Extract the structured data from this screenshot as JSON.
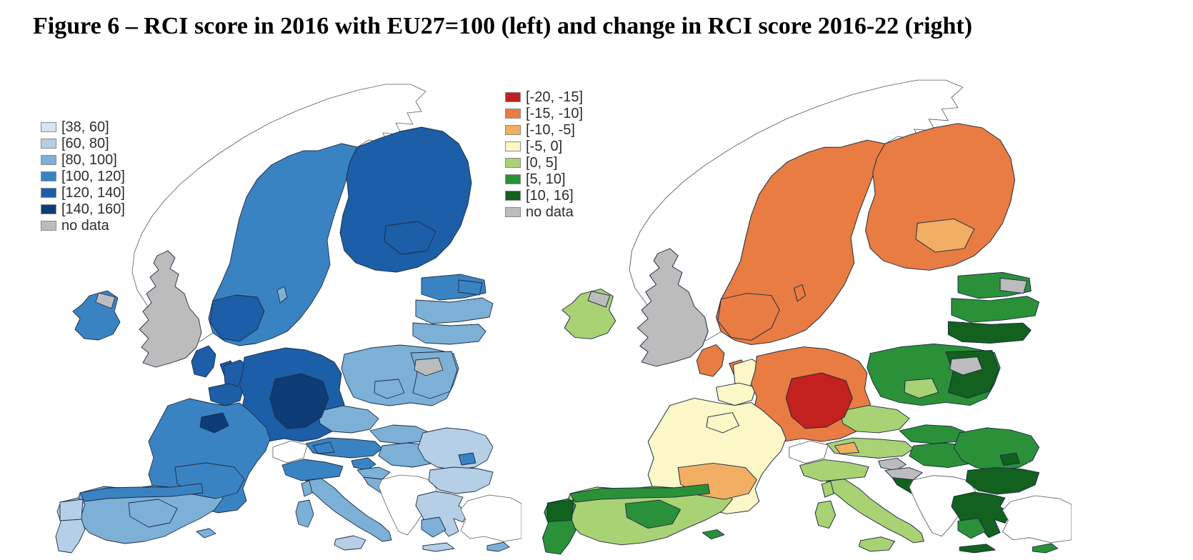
{
  "figure": {
    "title": "Figure 6 – RCI score in 2016 with EU27=100 (left) and change in RCI score 2016-22 (right)"
  },
  "maps": {
    "left": {
      "name": "RCI score in 2016 (EU27=100)",
      "legend": [
        {
          "label": "[38, 60]",
          "color": "#d7e4f1"
        },
        {
          "label": "[60, 80]",
          "color": "#b5cfe6"
        },
        {
          "label": "[80, 100]",
          "color": "#7cb0d7"
        },
        {
          "label": "[100, 120]",
          "color": "#3a83c3"
        },
        {
          "label": "[120, 140]",
          "color": "#1c5ea7"
        },
        {
          "label": "[140, 160]",
          "color": "#0d3c77"
        },
        {
          "label": "no data",
          "color": "#bcbcbc"
        }
      ],
      "regions": {
        "norway": null,
        "switzerland": null,
        "balkans": null,
        "turkey": null,
        "sweden": 3,
        "sweden-south": 4,
        "gotland": 2,
        "finland": 4,
        "finland-se": 4,
        "denmark": 4,
        "denmark-isles": 4,
        "estonia": 3,
        "estonia-patch": 3,
        "latvia": 2,
        "lithuania": 2,
        "uk": 6,
        "ireland": 3,
        "ni-patch": 6,
        "netherlands": 4,
        "belgium": 4,
        "germany": 4,
        "germany-center": 5,
        "poland": 2,
        "poland-east": 2,
        "poland-gray": 6,
        "poland-light": 2,
        "czechia": 2,
        "slovakia": 2,
        "austria": 3,
        "austria-west": 3,
        "hungary": 2,
        "france": 3,
        "paris": 5,
        "france-south": 3,
        "spain": 2,
        "spain-north": 3,
        "spain-center": 2,
        "portugal": 1,
        "portugal-north": 1,
        "italy-north": 3,
        "italy-peninsula": 2,
        "sicily": 1,
        "sardinia": 2,
        "corsica": 2,
        "balearics": 2,
        "slovenia": 3,
        "croatia-north": 2,
        "croatia-coast": 2,
        "romania": 1,
        "romania-buch": 3,
        "bulgaria": 1,
        "greece": 1,
        "greece-south": 2,
        "crete": 1,
        "cyprus": 2
      }
    },
    "right": {
      "name": "Change in RCI score 2016-22",
      "legend": [
        {
          "label": "[-20, -15]",
          "color": "#c32020"
        },
        {
          "label": "[-15, -10]",
          "color": "#e87c42"
        },
        {
          "label": "[-10, -5]",
          "color": "#f2ae63"
        },
        {
          "label": "[-5, 0]",
          "color": "#fbf7c6"
        },
        {
          "label": "[0, 5]",
          "color": "#a9d274"
        },
        {
          "label": "[5, 10]",
          "color": "#2a9138"
        },
        {
          "label": "[10, 16]",
          "color": "#12611e"
        },
        {
          "label": "no data",
          "color": "#bcbcbc"
        }
      ],
      "regions": {
        "norway": null,
        "switzerland": null,
        "balkans": null,
        "turkey": null,
        "sweden": 1,
        "sweden-south": 1,
        "gotland": 1,
        "finland": 1,
        "finland-se": 2,
        "denmark": 1,
        "denmark-isles": 1,
        "estonia": 5,
        "estonia-patch": 7,
        "latvia": 5,
        "lithuania": 6,
        "uk": 7,
        "ireland": 4,
        "ni-patch": 7,
        "netherlands": 3,
        "belgium": 3,
        "germany": 1,
        "germany-center": 0,
        "poland": 5,
        "poland-east": 6,
        "poland-gray": 7,
        "poland-light": 4,
        "czechia": 4,
        "slovakia": 5,
        "austria": 4,
        "austria-west": 2,
        "hungary": 5,
        "france": 3,
        "paris": 3,
        "france-south": 2,
        "spain": 4,
        "spain-north": 5,
        "spain-center": 5,
        "portugal": 5,
        "portugal-north": 6,
        "italy-north": 4,
        "italy-peninsula": 4,
        "sicily": 4,
        "sardinia": 4,
        "corsica": 4,
        "balearics": 5,
        "slovenia": 7,
        "croatia-north": 7,
        "croatia-coast": 6,
        "romania": 5,
        "romania-buch": 6,
        "bulgaria": 6,
        "greece": 6,
        "greece-south": 5,
        "crete": 6,
        "cyprus": 5
      }
    }
  }
}
